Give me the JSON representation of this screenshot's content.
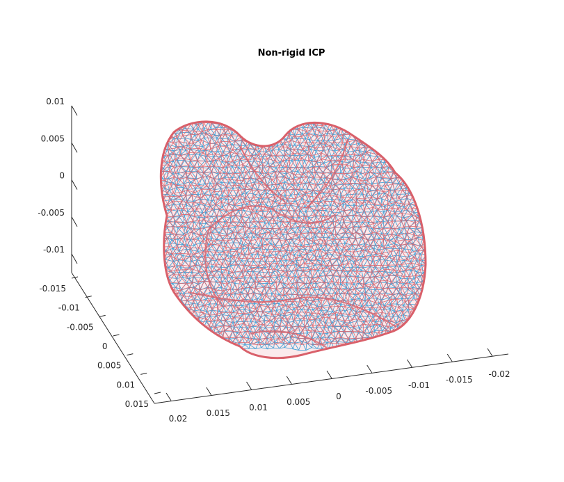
{
  "chart_data": {
    "type": "3d-mesh",
    "title": "Non-rigid ICP",
    "xlabel": "",
    "ylabel": "",
    "zlabel": "",
    "x_ticks": [
      "-0.02",
      "-0.015",
      "-0.01",
      "-0.005",
      "0",
      "0.005",
      "0.01",
      "0.015",
      "0.02"
    ],
    "y_ticks": [
      "-0.015",
      "-0.01",
      "-0.005",
      "0",
      "0.005",
      "0.01",
      "0.015"
    ],
    "z_ticks": [
      "0.01",
      "0.005",
      "0",
      "-0.005",
      "-0.01"
    ],
    "xlim": [
      -0.022,
      0.022
    ],
    "ylim": [
      -0.016,
      0.017
    ],
    "zlim": [
      -0.012,
      0.01
    ],
    "grid": false,
    "series": [
      {
        "color": "#d9606a",
        "style": "wireframe"
      },
      {
        "color": "#3f9fd6",
        "style": "wireframe"
      }
    ]
  }
}
